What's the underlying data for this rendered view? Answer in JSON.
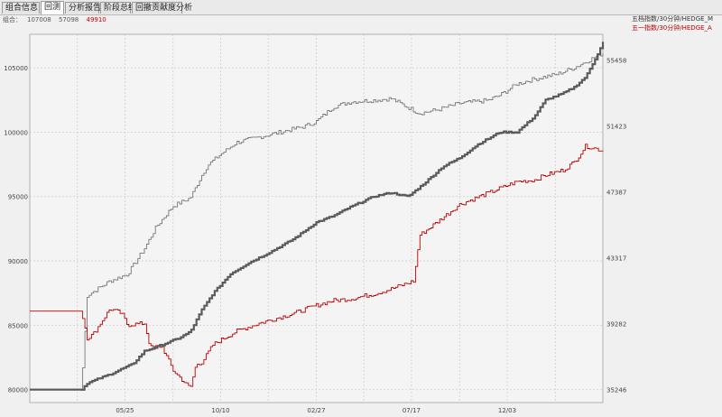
{
  "tabs": [
    {
      "label": "组合信息",
      "active": false
    },
    {
      "label": "回测",
      "active": true
    },
    {
      "label": "分析报告",
      "active": false
    },
    {
      "label": "阶段总结",
      "active": false
    },
    {
      "label": "回撤贡献度分析",
      "active": false
    }
  ],
  "summary": {
    "label": "组合：",
    "value1": "107008",
    "value2": "57098",
    "value3": "49910"
  },
  "colors": {
    "series1": "#5a5a5a",
    "series2": "#c00000",
    "series3": "#777777",
    "grid": "#cfcfcf",
    "background": "#f4f4f4"
  },
  "chart_data": {
    "type": "line",
    "x_ticks": [
      "05/25",
      "10/10",
      "02/27",
      "07/17",
      "12/03"
    ],
    "left_axis": {
      "ticks": [
        80000,
        85000,
        90000,
        95000,
        100000,
        105000
      ],
      "range": [
        79000,
        107600
      ]
    },
    "right_axis": {
      "ticks": [
        35246,
        39282,
        43317,
        47387,
        51423,
        55458
      ],
      "range": [
        34432,
        57050
      ]
    },
    "grid": true,
    "legend_position": "top-right",
    "series": [
      {
        "name": "五档指数/30分钟/HEDGE_M",
        "axis": "left",
        "color": "#5a5a5a",
        "x": [
          0,
          0.09,
          0.1,
          0.14,
          0.18,
          0.2,
          0.22,
          0.26,
          0.28,
          0.3,
          0.32,
          0.35,
          0.38,
          0.42,
          0.46,
          0.5,
          0.53,
          0.56,
          0.6,
          0.63,
          0.66,
          0.69,
          0.72,
          0.75,
          0.78,
          0.82,
          0.85,
          0.88,
          0.9,
          0.93,
          0.95,
          0.97,
          0.99,
          1.0
        ],
        "values": [
          80000,
          80000,
          80500,
          81200,
          82000,
          83000,
          83300,
          84000,
          84500,
          86200,
          87500,
          89000,
          89800,
          90700,
          91700,
          93000,
          93500,
          94200,
          95000,
          95300,
          95000,
          96100,
          97300,
          98000,
          99000,
          100000,
          100000,
          101200,
          102500,
          103000,
          103500,
          104300,
          106000,
          107000
        ]
      },
      {
        "name": "五一指数/30分钟/HEDGE_A",
        "axis": "right",
        "color": "#c00000",
        "x": [
          0,
          0.09,
          0.1,
          0.11,
          0.14,
          0.16,
          0.17,
          0.2,
          0.21,
          0.23,
          0.25,
          0.28,
          0.29,
          0.3,
          0.32,
          0.36,
          0.4,
          0.46,
          0.5,
          0.53,
          0.56,
          0.6,
          0.63,
          0.67,
          0.68,
          0.71,
          0.75,
          0.8,
          0.85,
          0.88,
          0.9,
          0.93,
          0.95,
          0.97,
          1.0
        ],
        "values": [
          40050,
          40050,
          38400,
          38600,
          40200,
          39900,
          39200,
          39300,
          37800,
          37900,
          36400,
          35300,
          36800,
          36900,
          38000,
          38800,
          39300,
          39900,
          40400,
          40700,
          40800,
          41100,
          41400,
          41900,
          44700,
          45500,
          46600,
          47300,
          48000,
          48100,
          48400,
          48700,
          49200,
          50200,
          49910
        ]
      },
      {
        "name": "",
        "axis": "right",
        "color": "#777777",
        "x": [
          0,
          0.09,
          0.1,
          0.14,
          0.17,
          0.2,
          0.22,
          0.25,
          0.28,
          0.3,
          0.31,
          0.33,
          0.36,
          0.42,
          0.48,
          0.5,
          0.53,
          0.56,
          0.6,
          0.63,
          0.68,
          0.71,
          0.75,
          0.8,
          0.82,
          0.85,
          0.88,
          0.92,
          0.95,
          1.0
        ],
        "values": [
          35250,
          35250,
          41000,
          41900,
          42300,
          43900,
          45200,
          46500,
          47000,
          48400,
          49000,
          49600,
          50400,
          50900,
          51400,
          51700,
          52600,
          52900,
          53000,
          53100,
          52200,
          52400,
          52800,
          53000,
          53300,
          54000,
          54300,
          54600,
          55000,
          55900
        ]
      }
    ]
  }
}
